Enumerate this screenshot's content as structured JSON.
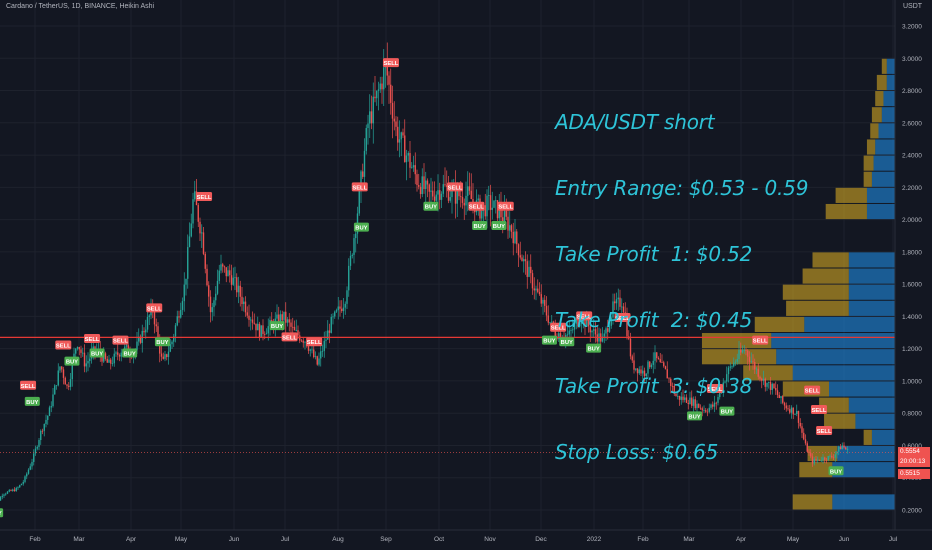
{
  "header": {
    "title": "Cardano / TetherUS, 1D, BINANCE, Heikin Ashi",
    "unit": "USDT"
  },
  "annotation": {
    "lines": [
      "ADA/USDT short",
      "Entry Range: $0.53 - 0.59",
      "Take Profit  1: $0.52",
      "Take Profit  2: $0.45",
      "Take Profit  3: $0.38",
      "Stop Loss: $0.65"
    ]
  },
  "price_tags": {
    "last_price": "0.5554",
    "countdown": "20:00:13",
    "other_price": "0.5515"
  },
  "colors": {
    "background": "#131722",
    "up": "#26a69a",
    "down": "#ef5350",
    "annotation": "#2ec4d8",
    "volume_profile_up": "#2196f3",
    "volume_profile_down": "#e6b422",
    "horizontal_line": "#e53935"
  },
  "chart_data": {
    "type": "candlestick",
    "y_axis": {
      "ticks": [
        "0.2000",
        "0.4000",
        "0.6000",
        "0.8000",
        "1.0000",
        "1.2000",
        "1.4000",
        "1.6000",
        "1.8000",
        "2.0000",
        "2.2000",
        "2.4000",
        "2.6000",
        "2.8000",
        "3.0000",
        "3.2000"
      ],
      "range": [
        0.13,
        3.25
      ]
    },
    "x_axis": {
      "ticks": [
        "Feb",
        "Mar",
        "Apr",
        "May",
        "Jun",
        "Jul",
        "Aug",
        "Sep",
        "Oct",
        "Nov",
        "Dec",
        "2022",
        "Feb",
        "Mar",
        "Apr",
        "May",
        "Jun",
        "Jul"
      ]
    },
    "horizontal_line": 1.27,
    "price_path": [
      [
        "Jan 1",
        0.18
      ],
      [
        "Jan 10",
        0.3
      ],
      [
        "Jan 20",
        0.33
      ],
      [
        "Jan 25",
        0.38
      ],
      [
        "Feb 1",
        0.52
      ],
      [
        "Feb 7",
        0.7
      ],
      [
        "Feb 12",
        0.8
      ],
      [
        "Feb 20",
        1.1
      ],
      [
        "Feb 25",
        0.95
      ],
      [
        "Mar 1",
        1.25
      ],
      [
        "Mar 6",
        1.1
      ],
      [
        "Mar 12",
        1.2
      ],
      [
        "Mar 20",
        1.1
      ],
      [
        "Mar 28",
        1.2
      ],
      [
        "Apr 5",
        1.18
      ],
      [
        "Apr 10",
        1.3
      ],
      [
        "Apr 16",
        1.45
      ],
      [
        "Apr 22",
        1.1
      ],
      [
        "Apr 28",
        1.25
      ],
      [
        "May 5",
        1.6
      ],
      [
        "May 10",
        2.15
      ],
      [
        "May 15",
        1.9
      ],
      [
        "May 20",
        1.4
      ],
      [
        "May 25",
        1.7
      ],
      [
        "Jun 1",
        1.65
      ],
      [
        "Jun 10",
        1.45
      ],
      [
        "Jun 18",
        1.3
      ],
      [
        "Jun 25",
        1.35
      ],
      [
        "Jul 1",
        1.4
      ],
      [
        "Jul 8",
        1.3
      ],
      [
        "Jul 15",
        1.25
      ],
      [
        "Jul 22",
        1.1
      ],
      [
        "Jul 30",
        1.35
      ],
      [
        "Aug 8",
        1.5
      ],
      [
        "Aug 15",
        2.0
      ],
      [
        "Aug 22",
        2.6
      ],
      [
        "Aug 27",
        2.75
      ],
      [
        "Sep 2",
        2.95
      ],
      [
        "Sep 8",
        2.55
      ],
      [
        "Sep 14",
        2.4
      ],
      [
        "Sep 20",
        2.25
      ],
      [
        "Sep 27",
        2.15
      ],
      [
        "Oct 5",
        2.2
      ],
      [
        "Oct 12",
        2.15
      ],
      [
        "Oct 20",
        2.15
      ],
      [
        "Oct 28",
        2.05
      ],
      [
        "Nov 2",
        2.1
      ],
      [
        "Nov 8",
        2.05
      ],
      [
        "Nov 15",
        1.95
      ],
      [
        "Nov 22",
        1.75
      ],
      [
        "Nov 28",
        1.6
      ],
      [
        "Dec 4",
        1.45
      ],
      [
        "Dec 10",
        1.3
      ],
      [
        "Dec 18",
        1.28
      ],
      [
        "Dec 25",
        1.4
      ],
      [
        "Jan 2",
        1.3
      ],
      [
        "Jan 8",
        1.25
      ],
      [
        "Jan 14",
        1.45
      ],
      [
        "Jan 20",
        1.5
      ],
      [
        "Jan 26",
        1.1
      ],
      [
        "Feb 3",
        1.05
      ],
      [
        "Feb 10",
        1.15
      ],
      [
        "Feb 18",
        1.05
      ],
      [
        "Feb 25",
        0.9
      ],
      [
        "Mar 3",
        0.88
      ],
      [
        "Mar 12",
        0.82
      ],
      [
        "Mar 18",
        0.85
      ],
      [
        "Mar 25",
        1.05
      ],
      [
        "Apr 1",
        1.15
      ],
      [
        "Apr 5",
        1.2
      ],
      [
        "Apr 10",
        1.1
      ],
      [
        "Apr 16",
        1.0
      ],
      [
        "Apr 22",
        0.95
      ],
      [
        "Apr 28",
        0.85
      ],
      [
        "May 5",
        0.8
      ],
      [
        "May 10",
        0.6
      ],
      [
        "May 14",
        0.5
      ],
      [
        "May 20",
        0.52
      ],
      [
        "May 26",
        0.53
      ],
      [
        "Jun 1",
        0.6
      ],
      [
        "Jun 5",
        0.56
      ]
    ],
    "signals": [
      {
        "label": "BUY",
        "date": "Jan 5",
        "price": 0.18
      },
      {
        "label": "SELL",
        "date": "Jan 28",
        "price": 0.97
      },
      {
        "label": "BUY",
        "date": "Jan 31",
        "price": 0.87
      },
      {
        "label": "SELL",
        "date": "Feb 22",
        "price": 1.22
      },
      {
        "label": "BUY",
        "date": "Feb 28",
        "price": 1.12
      },
      {
        "label": "SELL",
        "date": "Mar 10",
        "price": 1.26
      },
      {
        "label": "BUY",
        "date": "Mar 13",
        "price": 1.17
      },
      {
        "label": "SELL",
        "date": "Mar 27",
        "price": 1.25
      },
      {
        "label": "BUY",
        "date": "Apr 2",
        "price": 1.17
      },
      {
        "label": "SELL",
        "date": "Apr 17",
        "price": 1.45
      },
      {
        "label": "BUY",
        "date": "Apr 22",
        "price": 1.24
      },
      {
        "label": "SELL",
        "date": "May 16",
        "price": 2.14
      },
      {
        "label": "BUY",
        "date": "Jun 28",
        "price": 1.34
      },
      {
        "label": "SELL",
        "date": "Jul 5",
        "price": 1.27
      },
      {
        "label": "SELL",
        "date": "Jul 20",
        "price": 1.24
      },
      {
        "label": "SELL",
        "date": "Aug 17",
        "price": 2.2
      },
      {
        "label": "BUY",
        "date": "Aug 18",
        "price": 1.95
      },
      {
        "label": "SELL",
        "date": "Sep 5",
        "price": 2.97
      },
      {
        "label": "BUY",
        "date": "Sep 28",
        "price": 2.08
      },
      {
        "label": "SELL",
        "date": "Oct 12",
        "price": 2.2
      },
      {
        "label": "SELL",
        "date": "Oct 25",
        "price": 2.08
      },
      {
        "label": "BUY",
        "date": "Oct 27",
        "price": 1.96
      },
      {
        "label": "BUY",
        "date": "Nov 8",
        "price": 1.96
      },
      {
        "label": "SELL",
        "date": "Nov 12",
        "price": 2.08
      },
      {
        "label": "BUY",
        "date": "Dec 7",
        "price": 1.25
      },
      {
        "label": "SELL",
        "date": "Dec 12",
        "price": 1.33
      },
      {
        "label": "BUY",
        "date": "Dec 17",
        "price": 1.24
      },
      {
        "label": "SELL",
        "date": "Dec 27",
        "price": 1.4
      },
      {
        "label": "BUY",
        "date": "Jan 2",
        "price": 1.2
      },
      {
        "label": "SELL",
        "date": "Jan 20",
        "price": 1.39
      },
      {
        "label": "BUY",
        "date": "Mar 6",
        "price": 0.78
      },
      {
        "label": "SELL",
        "date": "Mar 18",
        "price": 0.95
      },
      {
        "label": "BUY",
        "date": "Mar 25",
        "price": 0.81
      },
      {
        "label": "SELL",
        "date": "Apr 14",
        "price": 1.25
      },
      {
        "label": "SELL",
        "date": "May 14",
        "price": 0.94
      },
      {
        "label": "SELL",
        "date": "May 18",
        "price": 0.82
      },
      {
        "label": "SELL",
        "date": "May 21",
        "price": 0.69
      },
      {
        "label": "BUY",
        "date": "May 28",
        "price": 0.44
      }
    ],
    "volume_profile": [
      {
        "price": 2.95,
        "up": 0.05,
        "down": 0.03
      },
      {
        "price": 2.85,
        "up": 0.05,
        "down": 0.06
      },
      {
        "price": 2.75,
        "up": 0.07,
        "down": 0.05
      },
      {
        "price": 2.65,
        "up": 0.08,
        "down": 0.06
      },
      {
        "price": 2.55,
        "up": 0.1,
        "down": 0.05
      },
      {
        "price": 2.45,
        "up": 0.12,
        "down": 0.05
      },
      {
        "price": 2.35,
        "up": 0.13,
        "down": 0.06
      },
      {
        "price": 2.25,
        "up": 0.14,
        "down": 0.05
      },
      {
        "price": 2.15,
        "up": 0.17,
        "down": 0.19
      },
      {
        "price": 2.05,
        "up": 0.17,
        "down": 0.25
      },
      {
        "price": 1.75,
        "up": 0.28,
        "down": 0.22
      },
      {
        "price": 1.65,
        "up": 0.28,
        "down": 0.28
      },
      {
        "price": 1.55,
        "up": 0.28,
        "down": 0.4
      },
      {
        "price": 1.45,
        "up": 0.28,
        "down": 0.38
      },
      {
        "price": 1.35,
        "up": 0.55,
        "down": 0.3
      },
      {
        "price": 1.25,
        "up": 0.75,
        "down": 0.42
      },
      {
        "price": 1.15,
        "up": 0.72,
        "down": 0.45
      },
      {
        "price": 1.05,
        "up": 0.62,
        "down": 0.3
      },
      {
        "price": 0.95,
        "up": 0.4,
        "down": 0.28
      },
      {
        "price": 0.85,
        "up": 0.28,
        "down": 0.18
      },
      {
        "price": 0.75,
        "up": 0.24,
        "down": 0.19
      },
      {
        "price": 0.65,
        "up": 0.14,
        "down": 0.05
      },
      {
        "price": 0.55,
        "up": 0.35,
        "down": 0.18
      },
      {
        "price": 0.45,
        "up": 0.38,
        "down": 0.2
      },
      {
        "price": 0.25,
        "up": 0.38,
        "down": 0.24
      }
    ]
  }
}
